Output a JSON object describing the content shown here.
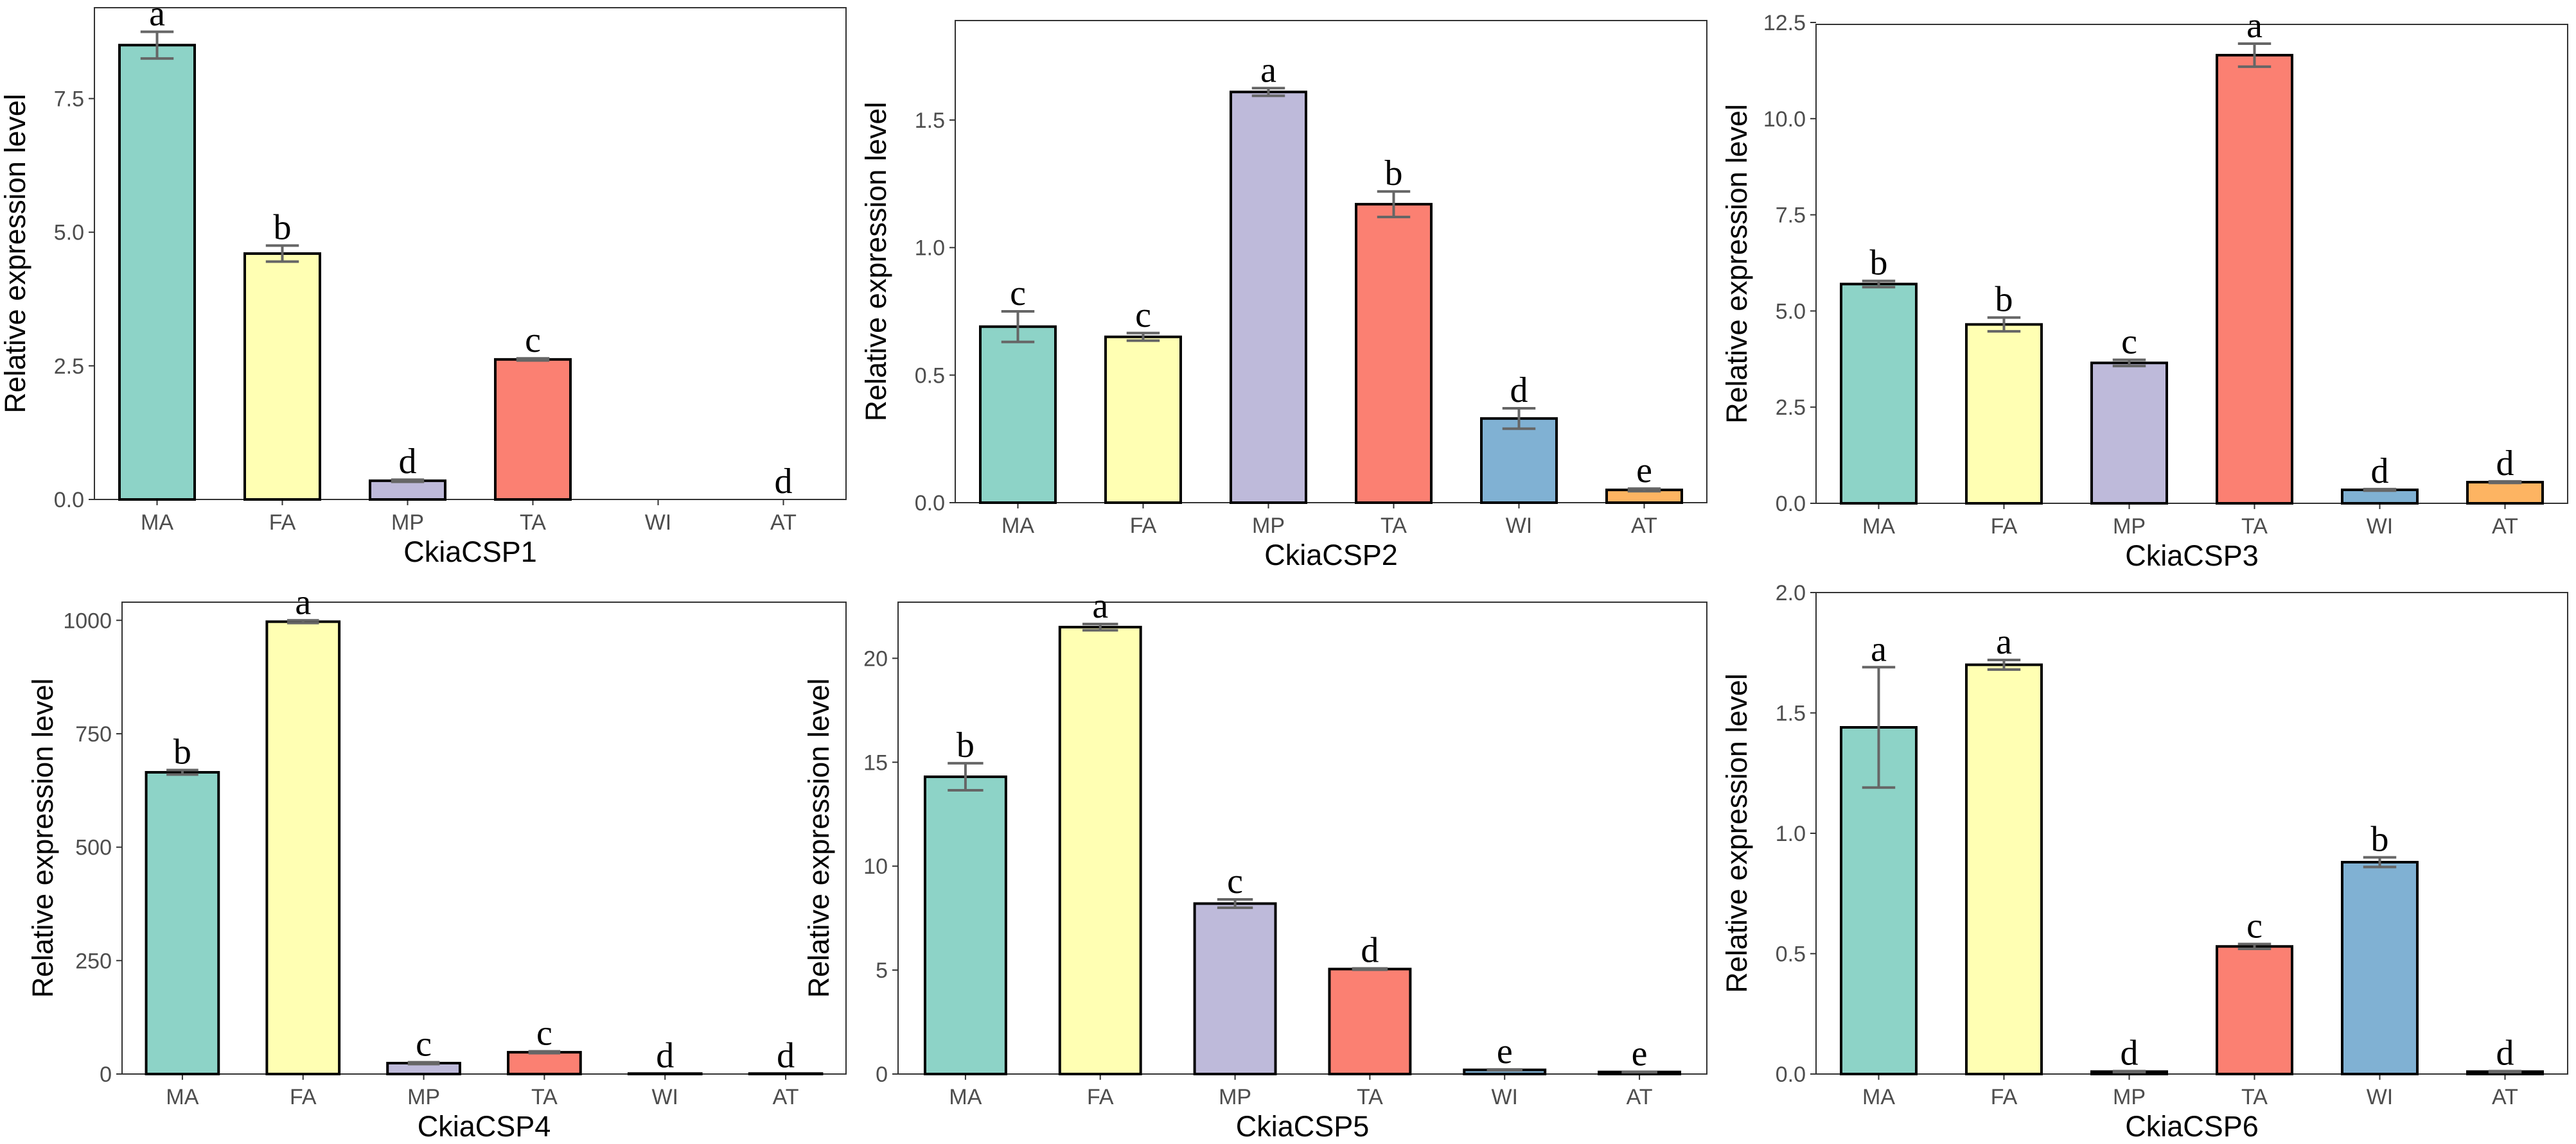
{
  "colors": {
    "MA": "#8dd3c7",
    "FA": "#ffffb3",
    "MP": "#bebada",
    "TA": "#fb8072",
    "WI": "#80b1d3",
    "AT": "#fdb462",
    "bar_outline": "#000000",
    "error_bar": "#666666",
    "panel_border": "#333333"
  },
  "chart_data": [
    {
      "type": "bar",
      "title": "",
      "xlabel": "CkiaCSP1",
      "ylabel": "Relative expression level",
      "categories": [
        "MA",
        "FA",
        "MP",
        "TA",
        "WI",
        "AT"
      ],
      "values": [
        8.5,
        4.6,
        0.35,
        2.62,
        0.0,
        0.0
      ],
      "errors": [
        0.25,
        0.15,
        0.02,
        0.02,
        0.0,
        0.0
      ],
      "letters": [
        "a",
        "b",
        "d",
        "c",
        "",
        "d"
      ],
      "ylim": [
        0,
        9.2
      ],
      "yticks": [
        0,
        2.5,
        5,
        7.5
      ],
      "ytick_labels": [
        "0.0",
        "2.5",
        "5.0",
        "7.5"
      ]
    },
    {
      "type": "bar",
      "title": "",
      "xlabel": "CkiaCSP2",
      "ylabel": "Relative expression level",
      "categories": [
        "MA",
        "FA",
        "MP",
        "TA",
        "WI",
        "AT"
      ],
      "values": [
        0.69,
        0.65,
        1.61,
        1.17,
        0.33,
        0.05
      ],
      "errors": [
        0.06,
        0.015,
        0.015,
        0.05,
        0.04,
        0.005
      ],
      "letters": [
        "c",
        "c",
        "a",
        "b",
        "d",
        "e"
      ],
      "ylim": [
        0,
        1.89
      ],
      "yticks": [
        0,
        0.5,
        1.0,
        1.5
      ],
      "ytick_labels": [
        "0.0",
        "0.5",
        "1.0",
        "1.5"
      ]
    },
    {
      "type": "bar",
      "title": "",
      "xlabel": "CkiaCSP3",
      "ylabel": "Relative expression level",
      "categories": [
        "MA",
        "FA",
        "MP",
        "TA",
        "WI",
        "AT"
      ],
      "values": [
        5.7,
        4.65,
        3.65,
        11.65,
        0.35,
        0.55
      ],
      "errors": [
        0.08,
        0.18,
        0.08,
        0.3,
        0.02,
        0.02
      ],
      "letters": [
        "b",
        "b",
        "c",
        "a",
        "d",
        "d"
      ],
      "ylim": [
        0,
        12.45
      ],
      "yticks": [
        0,
        2.5,
        5,
        7.5,
        10,
        12.5
      ],
      "ytick_labels": [
        "0.0",
        "2.5",
        "5.0",
        "7.5",
        "10.0",
        "12.5"
      ]
    },
    {
      "type": "bar",
      "title": "",
      "xlabel": "CkiaCSP4",
      "ylabel": "Relative expression level",
      "categories": [
        "MA",
        "FA",
        "MP",
        "TA",
        "WI",
        "AT"
      ],
      "values": [
        665,
        997,
        24,
        48,
        1,
        1
      ],
      "errors": [
        5,
        3,
        2,
        2,
        0,
        0
      ],
      "letters": [
        "b",
        "a",
        "c",
        "c",
        "d",
        "d"
      ],
      "ylim": [
        0,
        1040
      ],
      "yticks": [
        0,
        250,
        500,
        750,
        1000
      ],
      "ytick_labels": [
        "0",
        "250",
        "500",
        "750",
        "1000"
      ]
    },
    {
      "type": "bar",
      "title": "",
      "xlabel": "CkiaCSP5",
      "ylabel": "Relative expression level",
      "categories": [
        "MA",
        "FA",
        "MP",
        "TA",
        "WI",
        "AT"
      ],
      "values": [
        14.3,
        21.5,
        8.2,
        5.05,
        0.2,
        0.1
      ],
      "errors": [
        0.65,
        0.15,
        0.2,
        0.03,
        0.02,
        0.01
      ],
      "letters": [
        "b",
        "a",
        "c",
        "d",
        "e",
        "e"
      ],
      "ylim": [
        0,
        22.7
      ],
      "yticks": [
        0,
        5,
        10,
        15,
        20
      ],
      "ytick_labels": [
        "0",
        "5",
        "10",
        "15",
        "20"
      ]
    },
    {
      "type": "bar",
      "title": "",
      "xlabel": "CkiaCSP6",
      "ylabel": "Relative expression level",
      "categories": [
        "MA",
        "FA",
        "MP",
        "TA",
        "WI",
        "AT"
      ],
      "values": [
        1.44,
        1.7,
        0.01,
        0.53,
        0.88,
        0.01
      ],
      "errors": [
        0.25,
        0.02,
        0.002,
        0.01,
        0.02,
        0.002
      ],
      "letters": [
        "a",
        "a",
        "d",
        "c",
        "b",
        "d"
      ],
      "ylim": [
        0,
        2.0
      ],
      "yticks": [
        0,
        0.5,
        1.0,
        1.5,
        2.0
      ],
      "ytick_labels": [
        "0.0",
        "0.5",
        "1.0",
        "1.5",
        "2.0"
      ]
    }
  ]
}
